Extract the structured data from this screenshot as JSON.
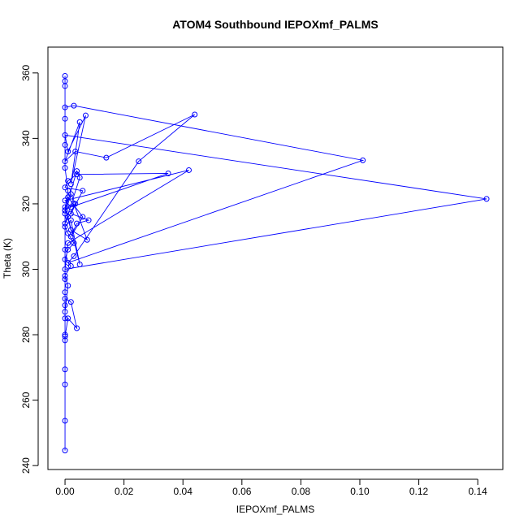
{
  "chart_data": {
    "type": "line",
    "title": "ATOM4 Southbound IEPOXmf_PALMS",
    "x_label": "IEPOXmf_PALMS",
    "y_label": "Theta (K)",
    "xlim": [
      -0.0058,
      0.1485
    ],
    "ylim": [
      238.8,
      367.9
    ],
    "xticks": [
      {
        "value": 0,
        "label": "0.00"
      },
      {
        "value": 0.02,
        "label": "0.02"
      },
      {
        "value": 0.04,
        "label": "0.04"
      },
      {
        "value": 0.06,
        "label": "0.06"
      },
      {
        "value": 0.08,
        "label": "0.08"
      },
      {
        "value": 0.1,
        "label": "0.10"
      },
      {
        "value": 0.12,
        "label": "0.12"
      },
      {
        "value": 0.14,
        "label": "0.14"
      }
    ],
    "yticks": [
      240,
      260,
      280,
      300,
      320,
      340,
      360
    ],
    "grid": false,
    "series": [
      {
        "name": "IEPOXmf_PALMS",
        "color": "#0000ff",
        "x": [
          0,
          0,
          0,
          0,
          0,
          0,
          0.001,
          0.004,
          0.002,
          0,
          0,
          0.001,
          0,
          0.002,
          0,
          0.001,
          0.003,
          0.001,
          0,
          0.002,
          0.005,
          0.001,
          0,
          0.003,
          0.0075,
          0.002,
          0,
          0.001,
          0.006,
          0.002,
          0.004,
          0.008,
          0.002,
          0.006,
          0,
          0.001,
          0.004,
          0.035,
          0.002,
          0,
          0.042,
          0.001,
          0,
          0.143,
          0,
          0.001,
          0.007,
          0.002,
          0.005,
          0,
          0.0035,
          0.014,
          0.044,
          0.025,
          0.003,
          0.001,
          0.101,
          0.003,
          0,
          0,
          0,
          0,
          0,
          0,
          0,
          0.001,
          0,
          0.004,
          0.005,
          0,
          0.0035,
          0.002,
          0,
          0,
          0,
          0,
          0,
          0,
          0
        ],
        "values": [
          244.6,
          253.7,
          264.8,
          269.4,
          278.3,
          279.5,
          285,
          282,
          290,
          291,
          287,
          295,
          298,
          301,
          303,
          306,
          308,
          311,
          313,
          315,
          301.5,
          316,
          318,
          320,
          309,
          312,
          319,
          322,
          316,
          310,
          314,
          315,
          317,
          324,
          325,
          327,
          329,
          329.3,
          319,
          321,
          330.3,
          308,
          300,
          321.5,
          341,
          336,
          347,
          326,
          345,
          333,
          336,
          334.1,
          347.3,
          333,
          304,
          302,
          333.3,
          350,
          349.5,
          356,
          357.5,
          359.1,
          346,
          338,
          331,
          324,
          318,
          330,
          328,
          314,
          320,
          323,
          317,
          306,
          297,
          293,
          289,
          285,
          280
        ]
      }
    ]
  }
}
